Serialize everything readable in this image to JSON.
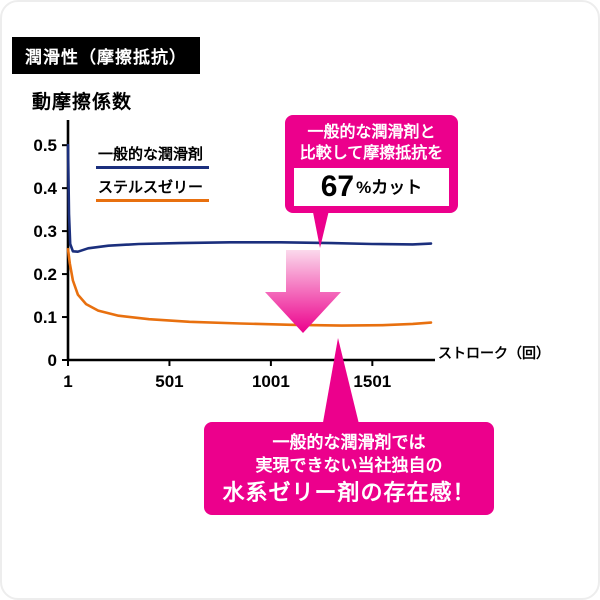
{
  "header": {
    "title": "潤滑性（摩擦抵抗）"
  },
  "colors": {
    "accent": "#ec008c",
    "accent_light": "#fbd9ec",
    "series1": "#1b2f7d",
    "series2": "#e8700f",
    "axis": "#000000"
  },
  "xlabel": "ストローク（回）",
  "chart_data": {
    "type": "line",
    "title": "動摩擦係数",
    "xlabel": "ストローク（回）",
    "ylabel": "動摩擦係数",
    "xlim": [
      1,
      1800
    ],
    "ylim": [
      0,
      0.54
    ],
    "grid": false,
    "legend_position": "top-left-inside",
    "x_ticks": [
      {
        "value": 1,
        "label": "1"
      },
      {
        "value": 501,
        "label": "501"
      },
      {
        "value": 1001,
        "label": "1001"
      },
      {
        "value": 1501,
        "label": "1501"
      }
    ],
    "y_ticks": [
      {
        "value": 0,
        "label": "0"
      },
      {
        "value": 0.1,
        "label": "0.1"
      },
      {
        "value": 0.2,
        "label": "0.2"
      },
      {
        "value": 0.3,
        "label": "0.3"
      },
      {
        "value": 0.4,
        "label": "0.4"
      },
      {
        "value": 0.5,
        "label": "0.5"
      }
    ],
    "series": [
      {
        "name": "一般的な潤滑剤",
        "color": "#1b2f7d",
        "points": [
          [
            1,
            0.5
          ],
          [
            6,
            0.34
          ],
          [
            12,
            0.27
          ],
          [
            25,
            0.253
          ],
          [
            50,
            0.252
          ],
          [
            100,
            0.26
          ],
          [
            200,
            0.266
          ],
          [
            350,
            0.27
          ],
          [
            550,
            0.272
          ],
          [
            800,
            0.274
          ],
          [
            1050,
            0.274
          ],
          [
            1300,
            0.272
          ],
          [
            1500,
            0.27
          ],
          [
            1700,
            0.269
          ],
          [
            1790,
            0.271
          ]
        ]
      },
      {
        "name": "ステルスゼリー",
        "color": "#e8700f",
        "points": [
          [
            1,
            0.258
          ],
          [
            10,
            0.225
          ],
          [
            25,
            0.185
          ],
          [
            50,
            0.152
          ],
          [
            90,
            0.13
          ],
          [
            150,
            0.115
          ],
          [
            250,
            0.103
          ],
          [
            400,
            0.095
          ],
          [
            600,
            0.089
          ],
          [
            850,
            0.085
          ],
          [
            1100,
            0.082
          ],
          [
            1350,
            0.08
          ],
          [
            1550,
            0.081
          ],
          [
            1700,
            0.084
          ],
          [
            1790,
            0.087
          ]
        ]
      }
    ]
  },
  "callout_top": {
    "line1": "一般的な潤滑剤と",
    "line2": "比較して摩擦抵抗を",
    "value": "67",
    "unit_suffix": "%カット"
  },
  "callout_bottom": {
    "line1": "一般的な潤滑剤では",
    "line2": "実現できない当社独自の",
    "line3": "水系ゼリー剤の存在感！"
  }
}
